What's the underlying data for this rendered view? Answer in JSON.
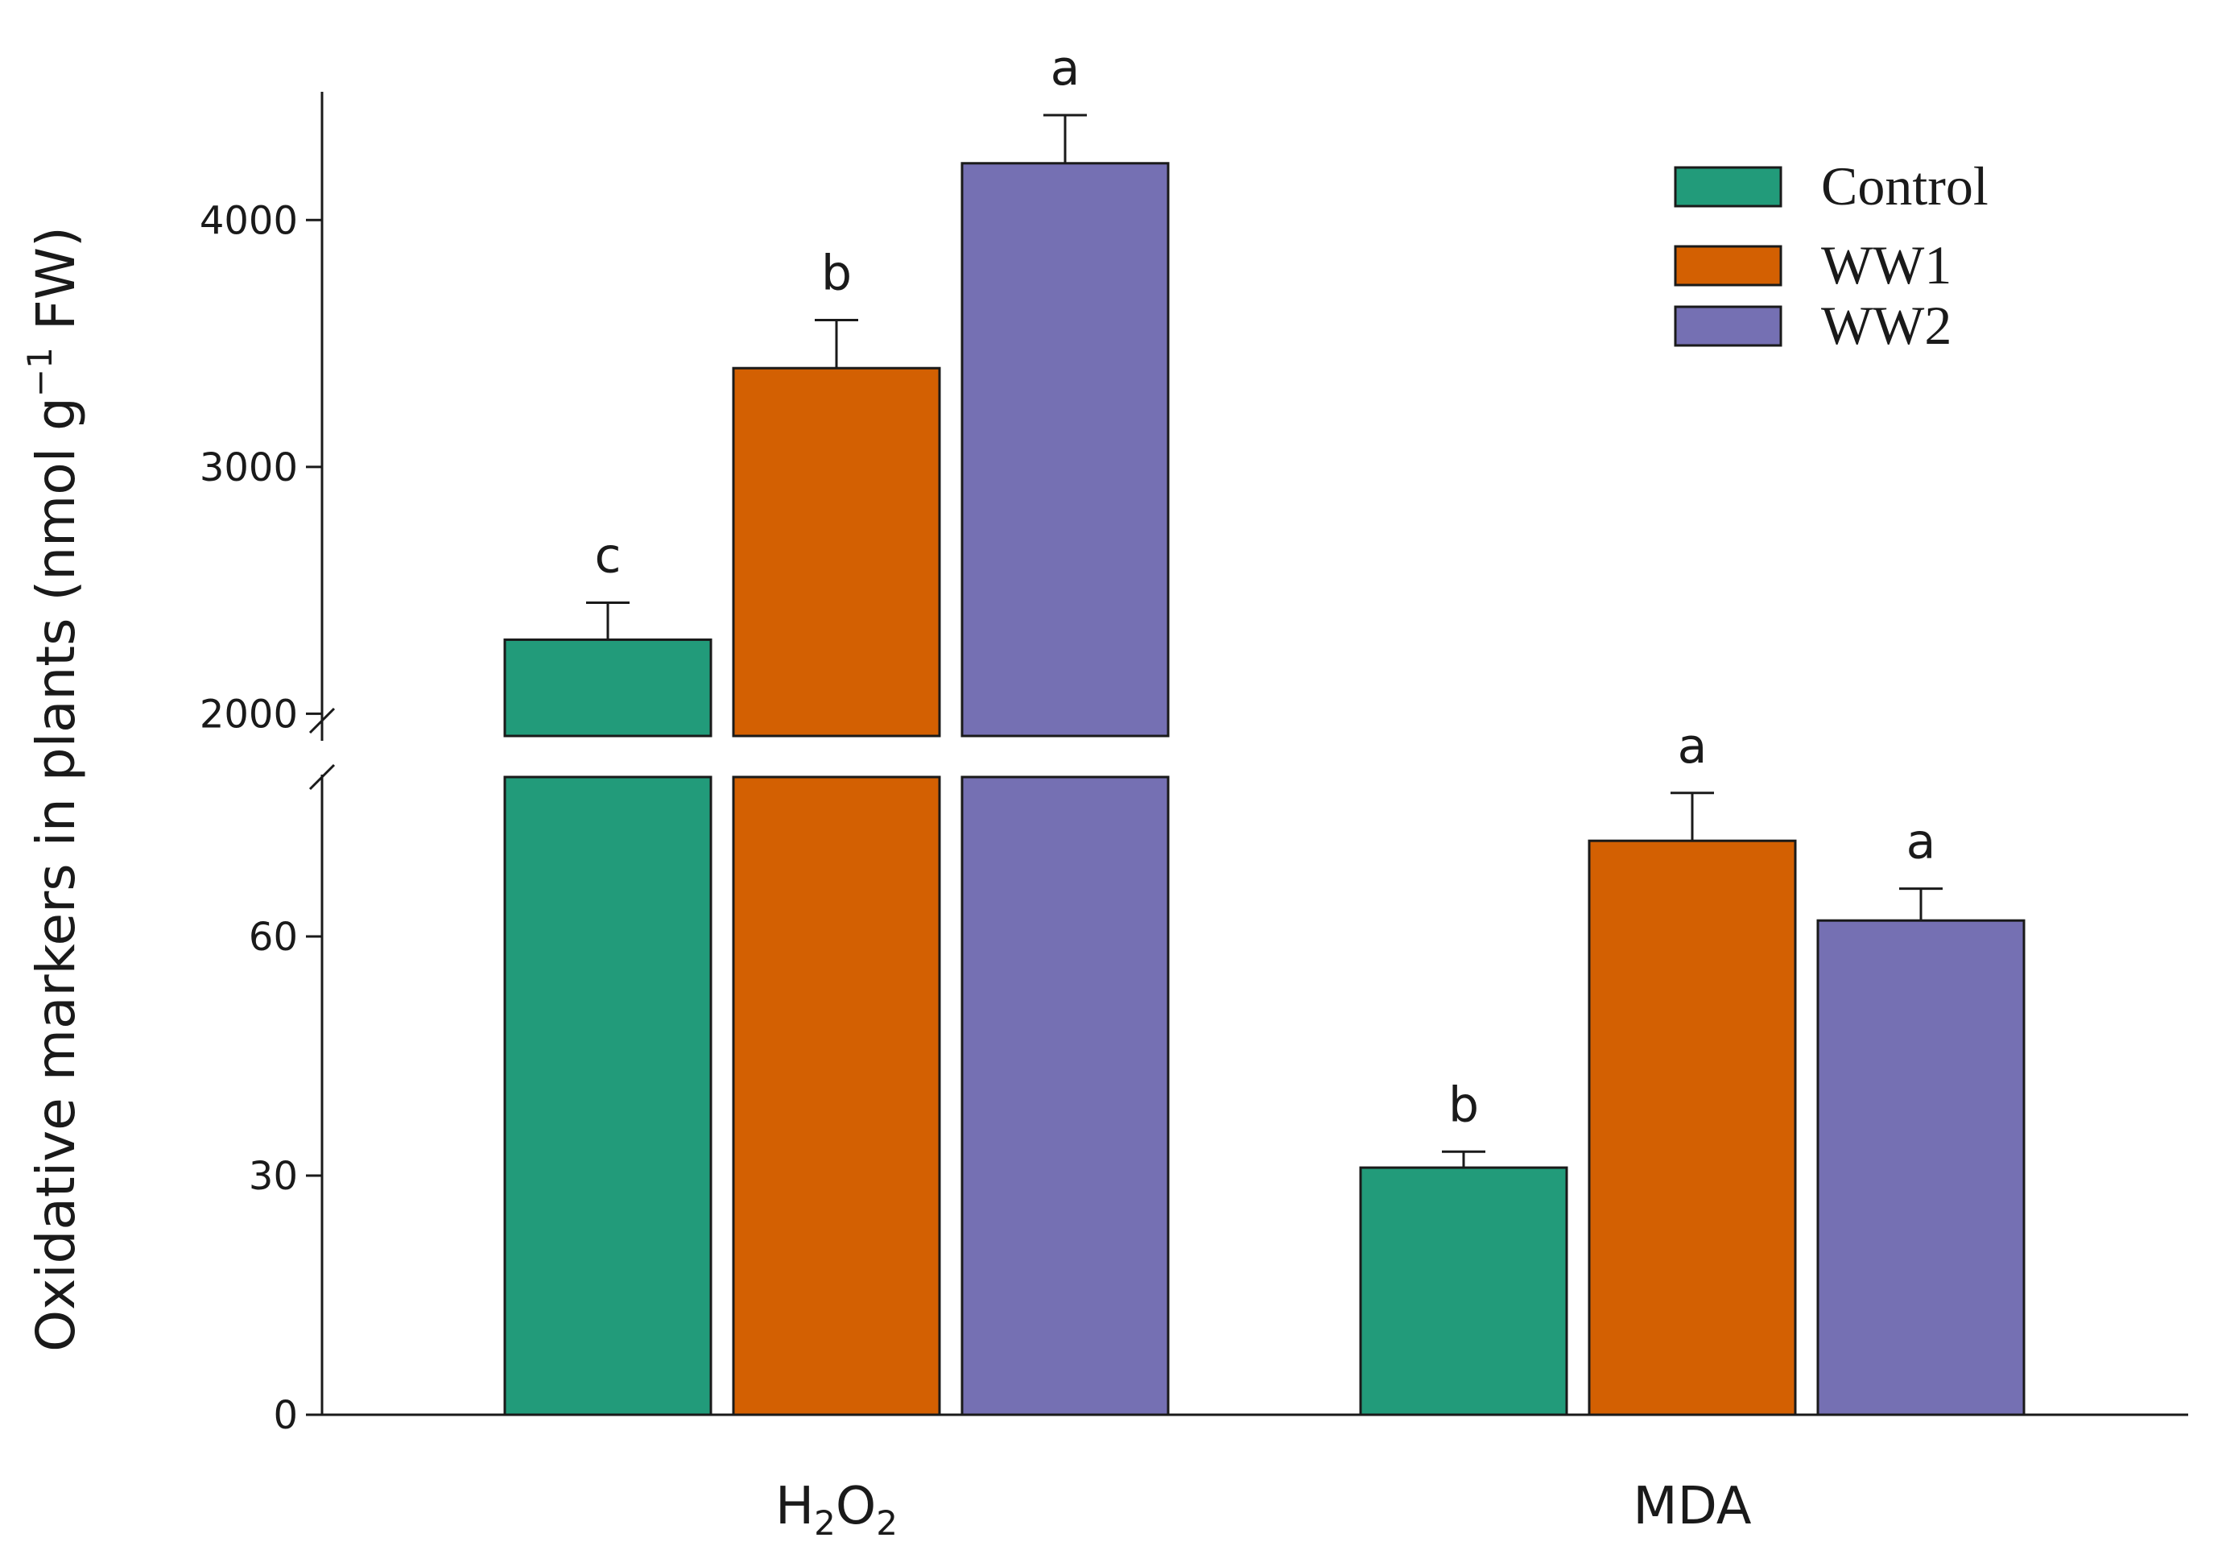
{
  "chart_data": {
    "type": "bar",
    "categories": [
      {
        "label": "H",
        "sub1": "2",
        "mid": "O",
        "sub2": "2"
      },
      {
        "label": "MDA"
      }
    ],
    "category_names": [
      "H2O2",
      "MDA"
    ],
    "ylabel": "Oxidative markers in plants",
    "ylabel_unit_prefix": "(nmol g",
    "ylabel_unit_exp": "−1",
    "ylabel_unit_suffix": " FW)",
    "y_broken": true,
    "y_segments": {
      "lower": {
        "range": [
          0,
          80
        ],
        "ticks": [
          "0",
          "30",
          "60"
        ],
        "tick_values": [
          0,
          30,
          60
        ]
      },
      "upper": {
        "range": [
          1910,
          4500
        ],
        "ticks": [
          "2000",
          "3000",
          "4000"
        ],
        "tick_values": [
          2000,
          3000,
          4000
        ]
      }
    },
    "series": [
      {
        "name": "Control",
        "color": "#229b7a",
        "values": [
          2300,
          31
        ],
        "errors": [
          150,
          2
        ],
        "letters": [
          "c",
          "b"
        ]
      },
      {
        "name": "WW1",
        "color": "#d36002",
        "values": [
          3400,
          72
        ],
        "errors": [
          195,
          6
        ],
        "letters": [
          "b",
          "a"
        ]
      },
      {
        "name": "WW2",
        "color": "#7570b3",
        "values": [
          4230,
          62
        ],
        "errors": [
          195,
          4
        ],
        "letters": [
          "a",
          "a"
        ]
      }
    ],
    "legend_position": "top-right",
    "grid": false
  }
}
